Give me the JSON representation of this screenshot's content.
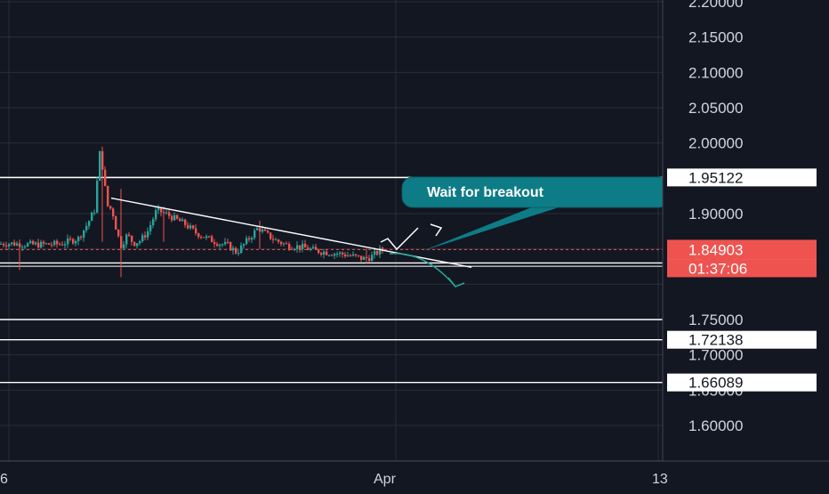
{
  "colors": {
    "background": "#131722",
    "grid": "#2a2e39",
    "up": "#26a69a",
    "down": "#ef5350",
    "axis_text": "#d1d4dc",
    "level_line": "#ffffff",
    "price_label_bg": "#ef5350",
    "callout_bg": "#0e7c86",
    "arrow_down": "#26a69a"
  },
  "chart_data": {
    "type": "candlestick",
    "title": "",
    "ylim": [
      1.5875,
      2.2
    ]
  },
  "price_axis": {
    "ticks": [
      "2.20000",
      "2.15000",
      "2.10000",
      "2.05000",
      "2.00000",
      "1.90000",
      "1.75000",
      "1.70000",
      "1.65000",
      "1.60000"
    ],
    "tick_values": [
      2.2,
      2.15,
      2.1,
      2.05,
      2.0,
      1.9,
      1.75,
      1.7,
      1.65,
      1.6
    ]
  },
  "time_axis": {
    "labels": [
      {
        "text": "6"
      },
      {
        "text": "Apr"
      },
      {
        "text": "13"
      }
    ]
  },
  "levels": [
    {
      "price": "1.95122",
      "value": 1.95122,
      "labeled": true
    },
    {
      "price": "1.83008",
      "value": 1.83008,
      "labeled": true
    },
    {
      "price": "1.75000",
      "value": 1.75,
      "labeled": false
    },
    {
      "price": "1.72138",
      "value": 1.72138,
      "labeled": true
    },
    {
      "price": "1.66089",
      "value": 1.66089,
      "labeled": true
    }
  ],
  "current_price": {
    "value": 1.84903,
    "label": "1.84903",
    "countdown": "01:37:06"
  },
  "annotation": {
    "text": "Wait for breakout"
  }
}
